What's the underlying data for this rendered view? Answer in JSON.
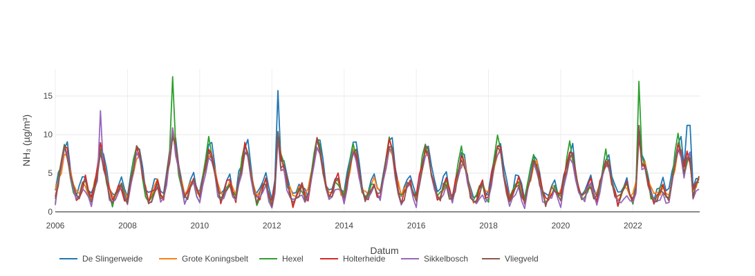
{
  "chart_data": {
    "type": "line",
    "title": "",
    "xlabel": "Datum",
    "ylabel": "NH₃ (µg/m³)",
    "xlim": [
      2006.0,
      2023.85
    ],
    "ylim": [
      0,
      18.5
    ],
    "x_ticks": [
      2006,
      2008,
      2010,
      2012,
      2014,
      2016,
      2018,
      2020,
      2022
    ],
    "x_tick_labels": [
      "2006",
      "2008",
      "2010",
      "2012",
      "2014",
      "2016",
      "2018",
      "2020",
      "2022"
    ],
    "y_ticks": [
      0,
      5,
      10,
      15
    ],
    "y_tick_labels": [
      "0",
      "5",
      "10",
      "15"
    ],
    "grid": true,
    "legend_position": "bottom",
    "x_unit": "year (fractional)",
    "series": [
      {
        "name": "De Slingerweide",
        "color": "#1f77b4",
        "shape": {
          "base": [
            1.5,
            3.5,
            5.0,
            6.5,
            7.0,
            4.5,
            2.5,
            1.5,
            2.0,
            3.0,
            3.5,
            2.0
          ],
          "bias": 0.5
        }
      },
      {
        "name": "Grote Koningsbelt",
        "color": "#ff7f0e",
        "shape": {
          "base": [
            1.8,
            3.2,
            4.6,
            6.0,
            6.2,
            4.0,
            2.6,
            1.6,
            1.8,
            2.6,
            3.0,
            2.0
          ],
          "bias": 0.2
        }
      },
      {
        "name": "Hexel",
        "color": "#2ca02c",
        "shape": {
          "base": [
            1.0,
            3.0,
            5.5,
            7.5,
            6.0,
            3.8,
            2.0,
            1.0,
            1.5,
            2.5,
            3.0,
            1.6
          ],
          "bias": 0.3
        }
      },
      {
        "name": "Holterheide",
        "color": "#d62728",
        "shape": {
          "base": [
            1.4,
            3.4,
            5.2,
            7.0,
            6.4,
            4.2,
            2.4,
            1.2,
            1.8,
            2.8,
            3.4,
            2.0
          ],
          "bias": 0.1
        }
      },
      {
        "name": "Sikkelbosch",
        "color": "#9467bd",
        "shape": {
          "base": [
            1.2,
            3.0,
            4.8,
            6.6,
            6.0,
            3.9,
            2.2,
            1.3,
            1.6,
            2.4,
            2.9,
            1.8
          ],
          "bias": -0.2
        }
      },
      {
        "name": "Vliegveld",
        "color": "#8c564b",
        "shape": {
          "base": [
            1.5,
            3.3,
            5.0,
            6.8,
            6.3,
            4.1,
            2.4,
            1.4,
            1.7,
            2.7,
            3.2,
            1.9
          ],
          "bias": 0.0
        }
      }
    ],
    "peaks": [
      {
        "x": 2009.25,
        "y": 17.5,
        "series": "Hexel"
      },
      {
        "x": 2012.17,
        "y": 15.7,
        "series": "De Slingerweide"
      },
      {
        "x": 2022.17,
        "y": 16.9,
        "series": "Hexel"
      },
      {
        "x": 2007.25,
        "y": 13.1,
        "series": "Sikkelbosch"
      },
      {
        "x": 2023.55,
        "y": 11.2,
        "series": "De Slingerweide"
      }
    ]
  }
}
